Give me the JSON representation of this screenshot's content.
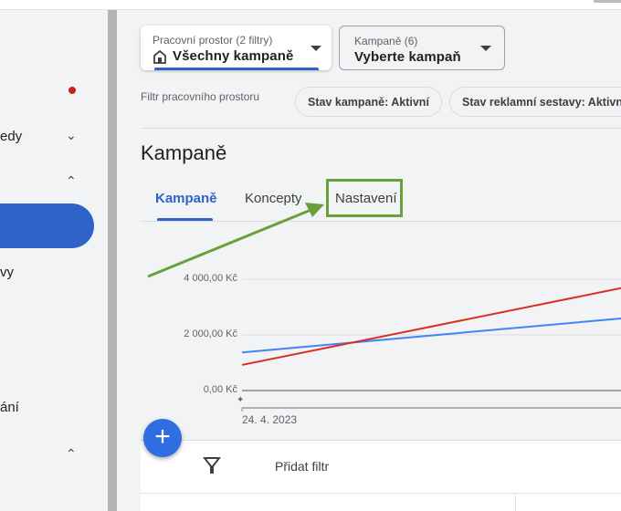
{
  "sidebar": {
    "items": [
      {
        "label": "edy",
        "chevron": "chevron-down-icon"
      },
      {
        "label": "",
        "chevron": "chevron-up-icon"
      },
      {
        "label": "vy"
      },
      {
        "label": "ání"
      },
      {
        "label": "",
        "chevron": "chevron-up-icon"
      }
    ],
    "notification_color": "#c5221f",
    "active_color": "#2f62c9"
  },
  "workspace_dropdown": {
    "label": "Pracovní prostor (2 filtry)",
    "value": "Všechny kampaně",
    "icon": "home-icon"
  },
  "campaign_dropdown": {
    "label": "Kampaně (6)",
    "value": "Vyberte kampaň"
  },
  "filters": {
    "label": "Filtr pracovního prostoru",
    "chips": [
      "Stav kampaně: Aktivní",
      "Stav reklamní sestavy: Aktivní"
    ]
  },
  "page_title": "Kampaně",
  "tabs": [
    {
      "label": "Kampaně",
      "active": true
    },
    {
      "label": "Koncepty"
    },
    {
      "label": "Nastavení",
      "highlighted": true
    }
  ],
  "annotation": {
    "color": "#6aa03c"
  },
  "chart_data": {
    "type": "line",
    "x": [
      "24. 4. 2023",
      ""
    ],
    "ylim": [
      0,
      4000
    ],
    "yticks": [
      "0,00 Kč",
      "2 000,00 Kč",
      "4 000,00 Kč"
    ],
    "ytick_values": [
      0,
      2000,
      4000
    ],
    "grid": true,
    "series": [
      {
        "color": "#4285f4",
        "values": [
          1370,
          2590
        ]
      },
      {
        "color": "#d93025",
        "values": [
          920,
          3680
        ]
      }
    ]
  },
  "fab": {
    "label": "+"
  },
  "table": {
    "add_filter": "Přidat filtr"
  }
}
